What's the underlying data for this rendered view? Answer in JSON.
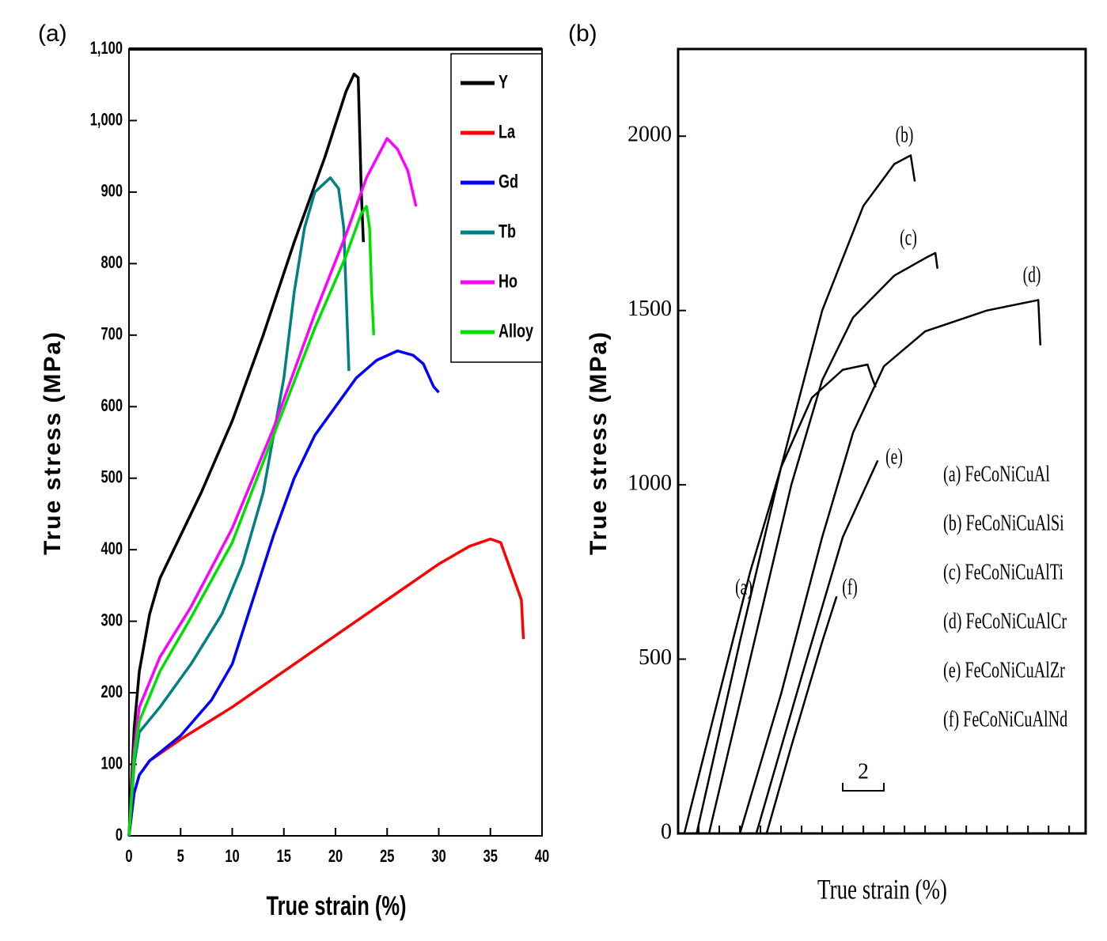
{
  "chart_data": [
    {
      "type": "line",
      "panel_label": "(a)",
      "xlabel": "True strain (%)",
      "ylabel": "True stress (MPa)",
      "xlim": [
        0,
        40
      ],
      "ylim": [
        0,
        1100
      ],
      "xticks": [
        0,
        5,
        10,
        15,
        20,
        25,
        30,
        35,
        40
      ],
      "yticks": [
        0,
        100,
        200,
        300,
        400,
        500,
        600,
        700,
        800,
        900,
        {
          "value": 1000,
          "label": "1,000"
        },
        {
          "value": 1100,
          "label": "1,100"
        }
      ],
      "legend": "upper right",
      "series": [
        {
          "name": "Y",
          "color": "#000000",
          "x": [
            0,
            0.5,
            1,
            2,
            3,
            5,
            7,
            10,
            13,
            16,
            19,
            21,
            21.8,
            22.2,
            22.5,
            22.7
          ],
          "values": [
            0,
            150,
            230,
            310,
            360,
            420,
            480,
            580,
            700,
            830,
            950,
            1040,
            1065,
            1060,
            900,
            830
          ]
        },
        {
          "name": "La",
          "color": "#ff0000",
          "x": [
            0,
            0.5,
            1,
            2,
            5,
            10,
            15,
            20,
            25,
            30,
            33,
            35,
            36,
            37,
            38,
            38.2
          ],
          "values": [
            0,
            60,
            85,
            105,
            135,
            180,
            230,
            280,
            330,
            380,
            405,
            415,
            410,
            370,
            330,
            275
          ]
        },
        {
          "name": "Gd",
          "color": "#0000ff",
          "x": [
            0,
            0.5,
            1,
            2,
            5,
            8,
            10,
            12,
            14,
            16,
            18,
            20,
            22,
            24,
            26,
            27.5,
            28.5,
            29.5,
            30
          ],
          "values": [
            0,
            60,
            85,
            105,
            140,
            190,
            240,
            330,
            420,
            500,
            560,
            600,
            640,
            665,
            678,
            672,
            660,
            628,
            620
          ]
        },
        {
          "name": "Tb",
          "color": "#008080",
          "x": [
            0,
            0.5,
            1,
            3,
            6,
            9,
            11,
            13,
            15,
            16,
            17,
            18,
            19.5,
            20.3,
            20.8,
            21.3
          ],
          "values": [
            0,
            100,
            145,
            180,
            240,
            310,
            380,
            480,
            640,
            760,
            850,
            900,
            920,
            905,
            850,
            650
          ]
        },
        {
          "name": "Ho",
          "color": "#ff00ff",
          "x": [
            0,
            0.5,
            1,
            3,
            6,
            10,
            14,
            18,
            21,
            23,
            25,
            26,
            27,
            27.8
          ],
          "values": [
            0,
            120,
            180,
            250,
            320,
            430,
            570,
            730,
            840,
            920,
            975,
            960,
            930,
            880
          ]
        },
        {
          "name": "Alloy",
          "color": "#00e000",
          "x": [
            0,
            0.5,
            1,
            3,
            6,
            10,
            14,
            18,
            21,
            22.5,
            23,
            23.3,
            23.5,
            23.7
          ],
          "values": [
            0,
            110,
            160,
            230,
            305,
            410,
            560,
            710,
            810,
            870,
            880,
            850,
            760,
            700
          ]
        }
      ]
    },
    {
      "type": "line",
      "panel_label": "(b)",
      "xlabel": "True strain (%)",
      "ylabel": "True stress (MPa)",
      "xlim": [
        0,
        19.8
      ],
      "ylim": [
        0,
        2250
      ],
      "yticks": [
        0,
        500,
        1000,
        1500,
        2000
      ],
      "xticks": [
        0,
        1,
        2,
        3,
        4,
        5,
        6,
        7,
        8,
        9,
        10,
        11,
        12,
        13,
        14,
        15,
        16,
        17,
        18,
        19
      ],
      "scale_bar": 2,
      "scale_bar_label": "2",
      "legend": "lower right",
      "series": [
        {
          "name": "(a) FeCoNiCuAl",
          "label": "(a)",
          "color": "#000000",
          "x": [
            0.3,
            2,
            3.5,
            5,
            6.5,
            8,
            9.2,
            9.4,
            9.6
          ],
          "values": [
            0,
            400,
            750,
            1050,
            1250,
            1330,
            1345,
            1310,
            1280
          ]
        },
        {
          "name": "(b) FeCoNiCuAlSi",
          "label": "(b)",
          "color": "#000000",
          "x": [
            0.9,
            3,
            5,
            7,
            9,
            10.5,
            11.3,
            11.5
          ],
          "values": [
            0,
            550,
            1050,
            1500,
            1800,
            1920,
            1945,
            1870
          ]
        },
        {
          "name": "(c) FeCoNiCuAlTi",
          "label": "(c)",
          "color": "#000000",
          "x": [
            1.5,
            3.5,
            5.5,
            7,
            8.5,
            10.5,
            12,
            12.5,
            12.6
          ],
          "values": [
            0,
            500,
            1000,
            1300,
            1480,
            1600,
            1650,
            1665,
            1620
          ]
        },
        {
          "name": "(d) FeCoNiCuAlCr",
          "label": "(d)",
          "color": "#000000",
          "x": [
            3,
            5,
            7,
            8.5,
            10,
            12,
            15,
            17.5,
            17.6
          ],
          "values": [
            0,
            400,
            850,
            1150,
            1340,
            1440,
            1500,
            1530,
            1400
          ]
        },
        {
          "name": "(e) FeCoNiCuAlZr",
          "label": "(e)",
          "color": "#000000",
          "x": [
            3.8,
            6,
            8,
            9.7
          ],
          "values": [
            0,
            450,
            850,
            1070
          ]
        },
        {
          "name": "(f) FeCoNiCuAlNd",
          "label": "(f)",
          "color": "#000000",
          "x": [
            4.3,
            5.5,
            7,
            7.7
          ],
          "values": [
            0,
            250,
            550,
            680
          ]
        }
      ]
    }
  ]
}
